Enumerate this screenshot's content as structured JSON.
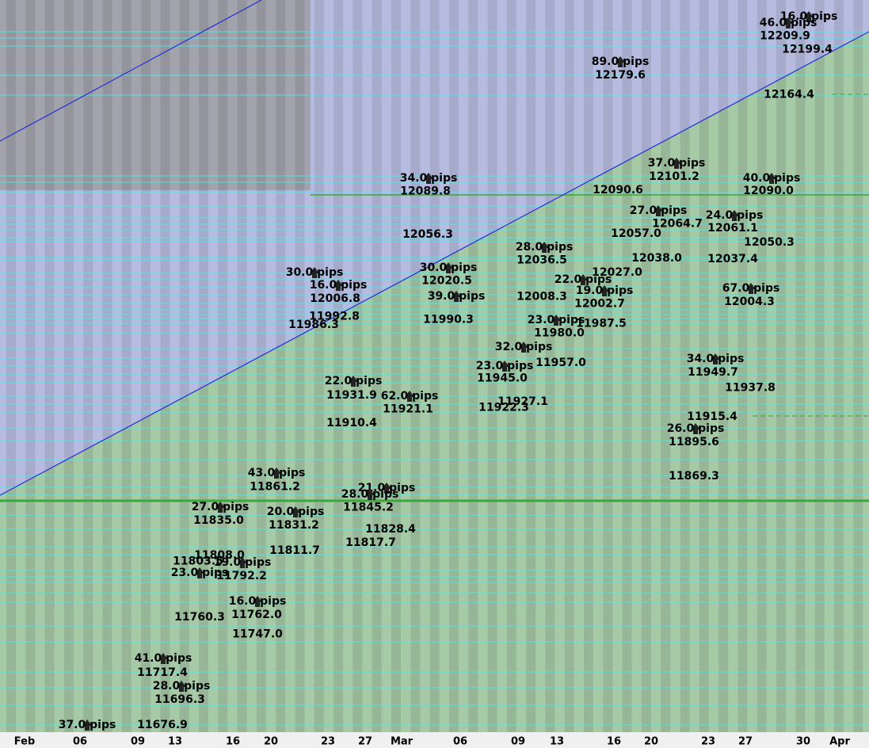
{
  "chart_data": {
    "type": "annotated-price",
    "categories": [
      "Feb",
      "06",
      "09",
      "13",
      "16",
      "20",
      "23",
      "27",
      "Mar",
      "06",
      "09",
      "13",
      "16",
      "20",
      "23",
      "27",
      "30",
      "Apr"
    ],
    "ylim": [
      11671.3,
      12237.8
    ],
    "pips": [
      "16.0 pips",
      "46.0 pips",
      "89.0 pips",
      "37.0 pips",
      "34.0 pips",
      "40.0 pips",
      "27.0 pips",
      "24.0 pips",
      "28.0 pips",
      "30.0 pips",
      "30.0 pips",
      "16.0 pips",
      "22.0 pips",
      "67.0 pips",
      "19.0 pips",
      "39.0 pips",
      "32.0 pips",
      "34.0 pips",
      "23.0 pips",
      "22.0 pips",
      "62.0 pips",
      "26.0 pips",
      "43.0 pips",
      "21.0 pips",
      "28.0 pips",
      "27.0 pips",
      "20.0 pips",
      "19.0 pips",
      "23.0 pips",
      "16.0 pips",
      "41.0 pips",
      "28.0 pips",
      "37.0 pips",
      "23.0 pips"
    ],
    "prices": [
      12209.9,
      12199.4,
      12179.6,
      12164.4,
      12101.2,
      12089.8,
      12090.6,
      {
        "value": 12090,
        "label": "12090.0"
      },
      12056.3,
      {
        "value": 12057,
        "label": "12057.0"
      },
      12064.7,
      12061.1,
      12050.3,
      12036.5,
      {
        "value": 12038,
        "label": "12038.0"
      },
      12037.4,
      {
        "value": 12027,
        "label": "12027.0"
      },
      12020.5,
      12006.8,
      12004.3,
      12008.3,
      12002.7,
      11992.8,
      11987.5,
      11990.3,
      11986.3,
      {
        "value": 11980,
        "label": "11980.0"
      },
      {
        "value": 11957,
        "label": "11957.0"
      },
      11949.7,
      {
        "value": 11945,
        "label": "11945.0"
      },
      11931.9,
      11937.8,
      11927.1,
      11922.3,
      11921.1,
      11915.4,
      11910.4,
      11895.6,
      11869.3,
      11861.2,
      11845.2,
      {
        "value": 11835,
        "label": "11835.0"
      },
      11831.2,
      11828.4,
      11817.7,
      11811.7,
      {
        "value": 11808,
        "label": "11808.0"
      },
      11803.5,
      11792.2,
      {
        "value": 11762,
        "label": "11762.0"
      },
      11760.3,
      {
        "value": 11747,
        "label": "11747.0"
      },
      11717.4,
      11696.3,
      11676.9
    ]
  }
}
